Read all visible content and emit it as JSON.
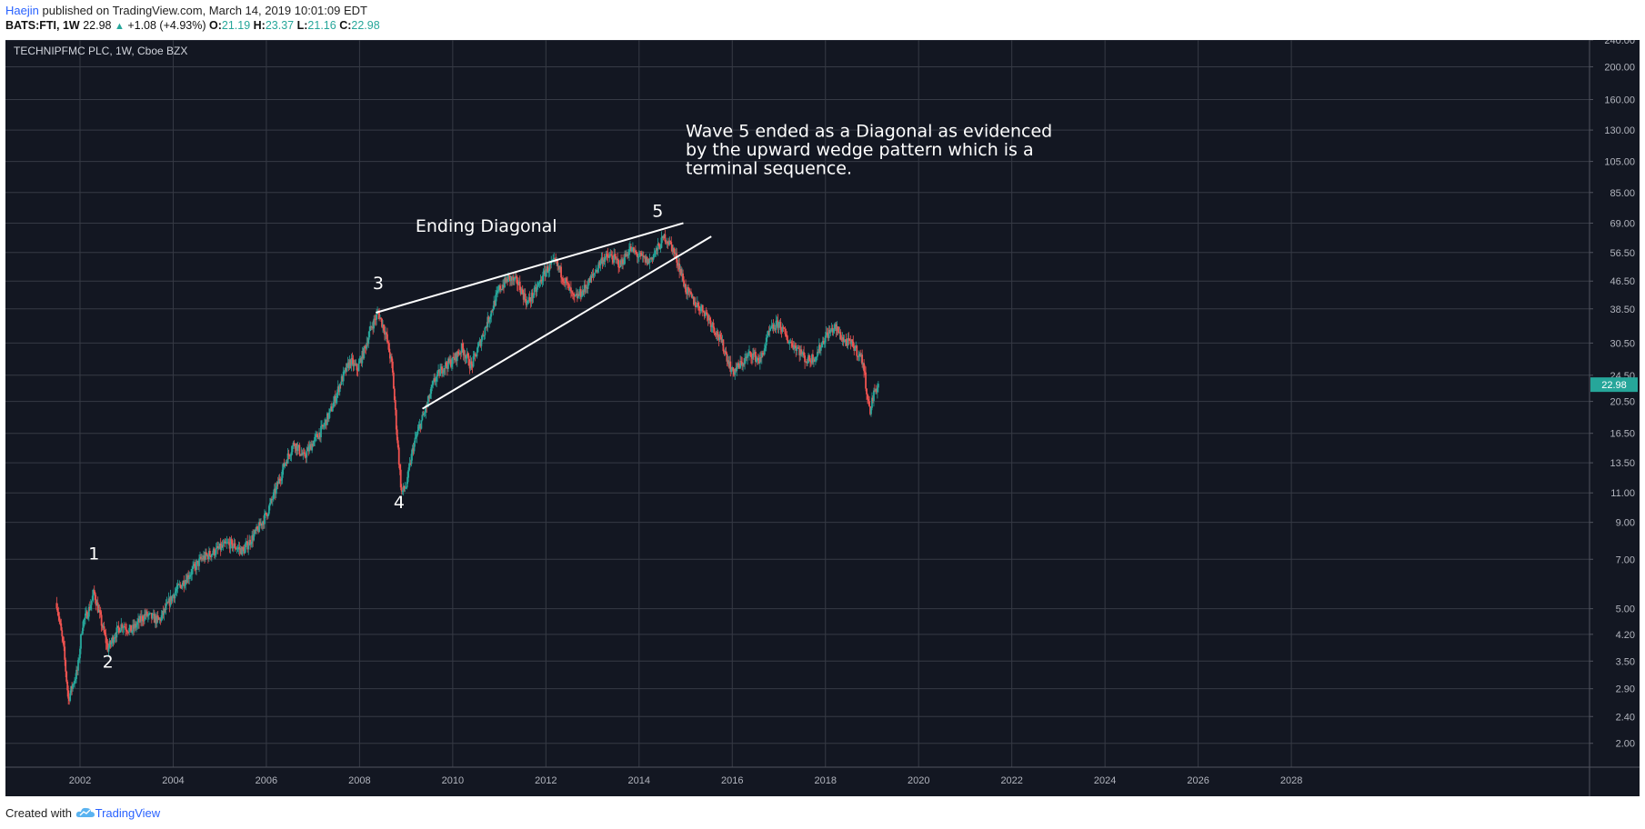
{
  "header": {
    "author": "Haejin",
    "published_text": "published on TradingView.com, March 14, 2019 10:01:09 EDT"
  },
  "info_bar": {
    "symbol": "BATS:FTI, 1W",
    "last": "22.98",
    "change": "+1.08 (+4.93%)",
    "open_label": "O:",
    "open": "21.19",
    "high_label": "H:",
    "high": "23.37",
    "low_label": "L:",
    "low": "21.16",
    "close_label": "C:",
    "close": "22.98"
  },
  "chart_data": {
    "type": "candlestick",
    "instrument": "TECHNIPFMC PLC, 1W, Cboe BZX",
    "scale": "log",
    "ylim": [
      1.7,
      240
    ],
    "xlim": [
      2000.4,
      2034.4
    ],
    "y_ticks": [
      "240.00",
      "200.00",
      "160.00",
      "130.00",
      "105.00",
      "85.00",
      "69.00",
      "56.50",
      "46.50",
      "38.50",
      "30.50",
      "24.50",
      "20.50",
      "16.50",
      "13.50",
      "11.00",
      "9.00",
      "7.00",
      "5.00",
      "4.20",
      "3.50",
      "2.90",
      "2.40",
      "2.00"
    ],
    "x_ticks": [
      "2002",
      "2004",
      "2006",
      "2008",
      "2010",
      "2012",
      "2014",
      "2016",
      "2018",
      "2020",
      "2022",
      "2024",
      "2026",
      "2028"
    ],
    "last_price_label": "22.98",
    "price_path": [
      [
        2001.5,
        5.2
      ],
      [
        2001.65,
        3.8
      ],
      [
        2001.75,
        2.7
      ],
      [
        2001.85,
        3.0
      ],
      [
        2001.95,
        3.3
      ],
      [
        2002.05,
        4.5
      ],
      [
        2002.2,
        5.0
      ],
      [
        2002.3,
        5.6
      ],
      [
        2002.45,
        4.6
      ],
      [
        2002.6,
        3.8
      ],
      [
        2002.75,
        4.2
      ],
      [
        2002.9,
        4.5
      ],
      [
        2003.1,
        4.3
      ],
      [
        2003.4,
        4.8
      ],
      [
        2003.7,
        4.6
      ],
      [
        2004.0,
        5.5
      ],
      [
        2004.3,
        6.2
      ],
      [
        2004.6,
        7.0
      ],
      [
        2004.9,
        7.4
      ],
      [
        2005.2,
        7.8
      ],
      [
        2005.5,
        7.4
      ],
      [
        2005.8,
        8.5
      ],
      [
        2006.0,
        9.5
      ],
      [
        2006.2,
        11.2
      ],
      [
        2006.4,
        13.5
      ],
      [
        2006.6,
        15.5
      ],
      [
        2006.8,
        14.0
      ],
      [
        2007.0,
        15.5
      ],
      [
        2007.2,
        17.0
      ],
      [
        2007.4,
        19.5
      ],
      [
        2007.6,
        23.5
      ],
      [
        2007.8,
        27.0
      ],
      [
        2007.95,
        25.5
      ],
      [
        2008.1,
        29.0
      ],
      [
        2008.25,
        34.0
      ],
      [
        2008.4,
        37.5
      ],
      [
        2008.55,
        33.0
      ],
      [
        2008.7,
        26.0
      ],
      [
        2008.8,
        16.5
      ],
      [
        2008.9,
        11.0
      ],
      [
        2009.0,
        11.5
      ],
      [
        2009.15,
        15.0
      ],
      [
        2009.3,
        17.5
      ],
      [
        2009.45,
        20.0
      ],
      [
        2009.6,
        23.5
      ],
      [
        2009.8,
        26.0
      ],
      [
        2010.0,
        27.0
      ],
      [
        2010.2,
        29.5
      ],
      [
        2010.4,
        26.0
      ],
      [
        2010.6,
        31.0
      ],
      [
        2010.8,
        37.0
      ],
      [
        2011.0,
        44.0
      ],
      [
        2011.2,
        47.5
      ],
      [
        2011.4,
        46.0
      ],
      [
        2011.6,
        40.0
      ],
      [
        2011.8,
        44.0
      ],
      [
        2012.0,
        50.0
      ],
      [
        2012.2,
        53.0
      ],
      [
        2012.4,
        47.0
      ],
      [
        2012.6,
        41.0
      ],
      [
        2012.8,
        43.5
      ],
      [
        2013.0,
        48.0
      ],
      [
        2013.2,
        54.0
      ],
      [
        2013.4,
        55.0
      ],
      [
        2013.6,
        52.0
      ],
      [
        2013.8,
        58.0
      ],
      [
        2014.0,
        55.0
      ],
      [
        2014.2,
        53.0
      ],
      [
        2014.4,
        58.0
      ],
      [
        2014.55,
        63.0
      ],
      [
        2014.7,
        59.0
      ],
      [
        2014.85,
        52.0
      ],
      [
        2015.0,
        44.0
      ],
      [
        2015.2,
        40.0
      ],
      [
        2015.4,
        38.0
      ],
      [
        2015.6,
        34.0
      ],
      [
        2015.8,
        30.0
      ],
      [
        2016.0,
        25.0
      ],
      [
        2016.2,
        26.5
      ],
      [
        2016.4,
        28.5
      ],
      [
        2016.6,
        27.0
      ],
      [
        2016.8,
        33.0
      ],
      [
        2017.0,
        35.0
      ],
      [
        2017.2,
        31.0
      ],
      [
        2017.4,
        29.5
      ],
      [
        2017.6,
        27.0
      ],
      [
        2017.8,
        28.0
      ],
      [
        2018.0,
        32.0
      ],
      [
        2018.2,
        34.0
      ],
      [
        2018.4,
        31.0
      ],
      [
        2018.6,
        30.0
      ],
      [
        2018.8,
        27.0
      ],
      [
        2018.95,
        19.0
      ],
      [
        2019.05,
        22.0
      ],
      [
        2019.15,
        22.98
      ]
    ],
    "trendlines": [
      {
        "name": "upper-wedge-line",
        "from": [
          2008.35,
          37.5
        ],
        "to": [
          2014.95,
          69.0
        ]
      },
      {
        "name": "lower-wedge-line",
        "from": [
          2009.35,
          19.5
        ],
        "to": [
          2015.55,
          63.0
        ]
      }
    ],
    "wave_labels": [
      {
        "text": "1",
        "x": 2002.3,
        "y": 7.0
      },
      {
        "text": "2",
        "x": 2002.6,
        "y": 3.35
      },
      {
        "text": "3",
        "x": 2008.4,
        "y": 44.0
      },
      {
        "text": "4",
        "x": 2008.85,
        "y": 9.9
      },
      {
        "text": "5",
        "x": 2014.4,
        "y": 72.0
      }
    ],
    "annotations": [
      {
        "name": "ending-diagonal-label",
        "text": "Ending Diagonal",
        "x": 2009.2,
        "y": 65.0
      },
      {
        "name": "wave5-note",
        "lines": [
          "Wave 5 ended as a Diagonal as evidenced",
          "by the upward wedge pattern which is a",
          "terminal sequence."
        ],
        "x": 2015.0,
        "y": 124.0
      }
    ],
    "colors": {
      "background": "#131722",
      "grid": "#363a45",
      "axis_text": "#b2b5be",
      "up": "#26a69a",
      "down": "#ef5350",
      "price_tag": "#26a69a",
      "text": "#ffffff"
    }
  },
  "footer": {
    "created_with": "Created with",
    "brand": "TradingView",
    "logo_icon": "tradingview-cloud-icon"
  }
}
